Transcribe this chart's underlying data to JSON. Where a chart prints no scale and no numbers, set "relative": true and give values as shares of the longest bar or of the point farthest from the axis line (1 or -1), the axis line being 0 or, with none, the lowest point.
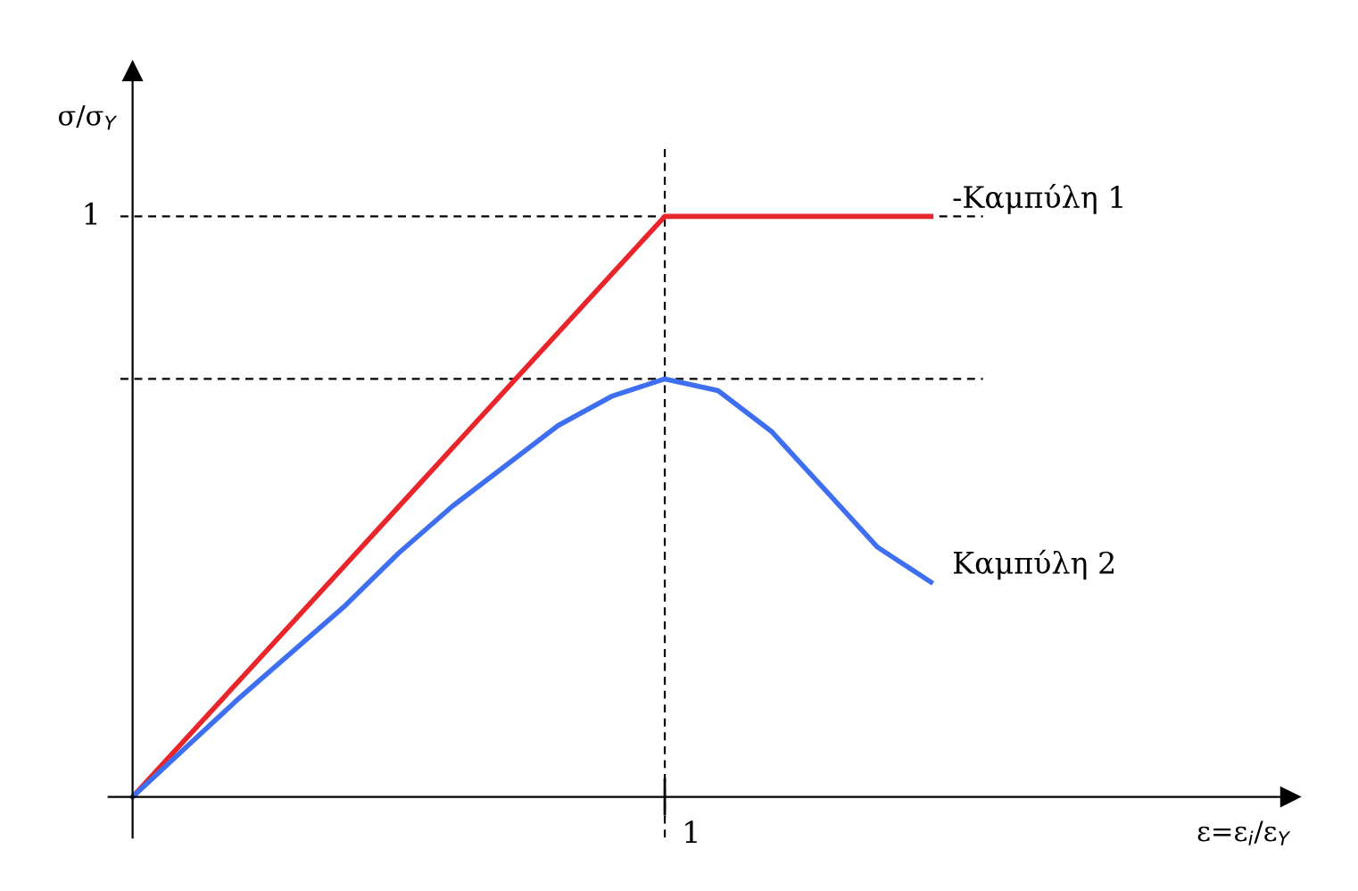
{
  "chart_data": {
    "type": "line",
    "relative": true,
    "ylabel": "σ/σ$_{Y}$",
    "categories": [
      null,
      null,
      null,
      null,
      null,
      null,
      null,
      null,
      null,
      null,
      null,
      null,
      null,
      null,
      null,
      null
    ],
    "series": [
      {
        "name": "-Καμπύλη 1",
        "color": "#e8252a",
        "values": [
          0,
          0.1,
          0.2,
          0.3,
          0.4,
          0.5,
          0.6,
          0.7,
          0.8,
          0.9,
          1,
          1,
          1,
          1,
          1,
          1
        ]
      },
      {
        "name": "Καμπύλη 2",
        "color": "#3d6ff0",
        "values": [
          0,
          0.085,
          0.17,
          0.25,
          0.33,
          0.42,
          0.5,
          0.57,
          0.64,
          0.69,
          0.72,
          0.7,
          0.63,
          0.53,
          0.43,
          0.37
        ]
      }
    ],
    "ref_lines": [
      {
        "axis": "y",
        "value": 1,
        "label": "1",
        "line_style": "dashed",
        "color": "#000000"
      },
      {
        "axis": "y",
        "value": 0.72,
        "line_style": "dashed",
        "color": "#000000"
      }
    ],
    "annotations": [
      "1",
      "ε=ε$_{i}$/ε$_{Y}$"
    ],
    "legend": false
  }
}
